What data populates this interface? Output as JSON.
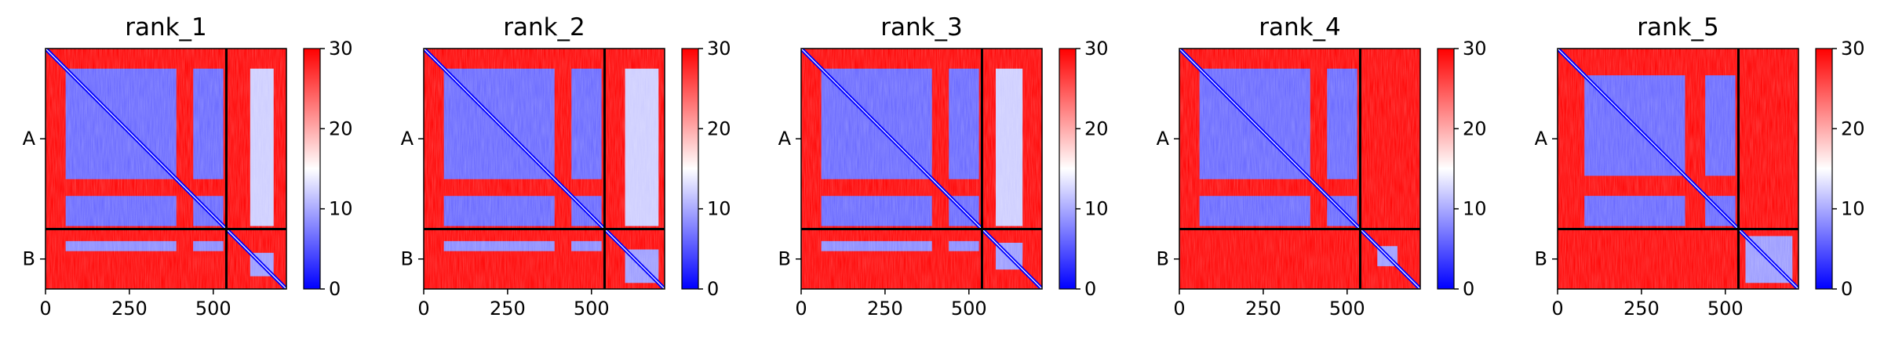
{
  "chart_data": {
    "type": "heatmap",
    "colormap": {
      "low": "#0000ff",
      "mid": "#ffffff",
      "high": "#ff0000",
      "range": [
        0,
        30
      ]
    },
    "colorbar_ticks": [
      0,
      10,
      20,
      30
    ],
    "x_ticks": [
      0,
      250,
      500
    ],
    "x_range": [
      0,
      718
    ],
    "chain_boundary": 539,
    "y_chain_labels": [
      "A",
      "B"
    ],
    "panels": [
      {
        "title": "rank_1",
        "chainA_blocks": [
          [
            60,
            390
          ],
          [
            440,
            530
          ]
        ],
        "chainB_blocks": [
          [
            610,
            680
          ]
        ],
        "chainA_low_rows": [
          [
            80,
            400
          ],
          [
            470,
            530
          ]
        ],
        "interchain": true
      },
      {
        "title": "rank_2",
        "chainA_blocks": [
          [
            60,
            390
          ],
          [
            440,
            530
          ]
        ],
        "chainB_blocks": [
          [
            600,
            700
          ]
        ],
        "chainA_low_rows": [
          [
            80,
            400
          ],
          [
            470,
            530
          ]
        ],
        "interchain": true
      },
      {
        "title": "rank_3",
        "chainA_blocks": [
          [
            60,
            390
          ],
          [
            440,
            530
          ]
        ],
        "chainB_blocks": [
          [
            580,
            660
          ]
        ],
        "chainA_low_rows": [
          [
            80,
            400
          ],
          [
            470,
            530
          ]
        ],
        "interchain": true
      },
      {
        "title": "rank_4",
        "chainA_blocks": [
          [
            60,
            390
          ],
          [
            440,
            530
          ]
        ],
        "chainB_blocks": [
          [
            590,
            650
          ]
        ],
        "chainA_low_rows": [
          [
            80,
            400
          ],
          [
            470,
            530
          ]
        ],
        "interchain": false
      },
      {
        "title": "rank_5",
        "chainA_blocks": [
          [
            80,
            380
          ],
          [
            430,
            530
          ]
        ],
        "chainB_blocks": [
          [
            560,
            700
          ]
        ],
        "chainA_low_rows": [
          [
            80,
            400
          ],
          [
            470,
            530
          ]
        ],
        "interchain": false
      }
    ]
  }
}
